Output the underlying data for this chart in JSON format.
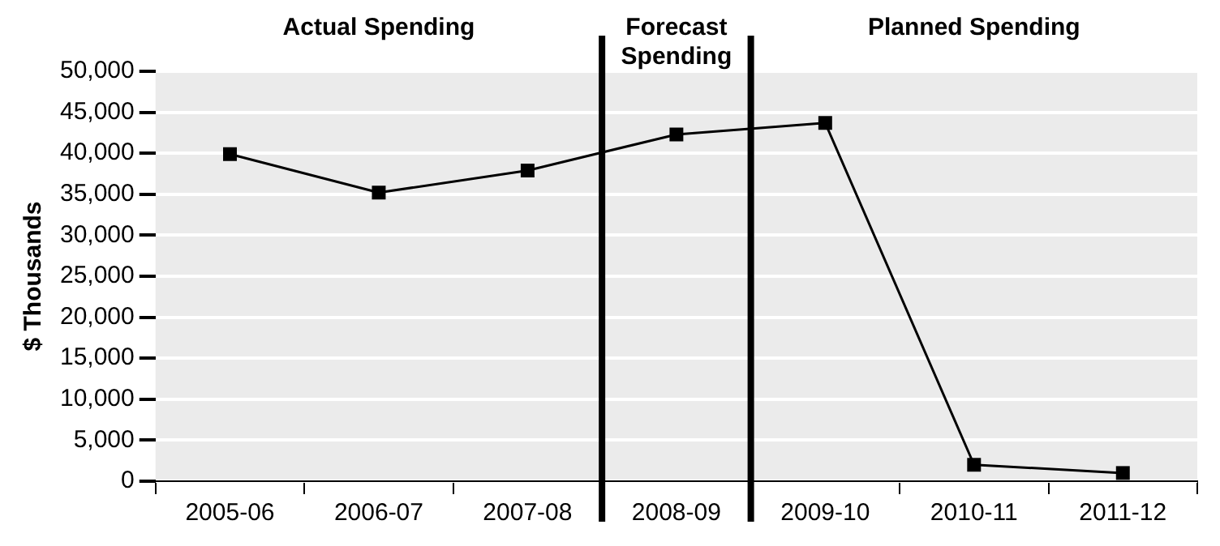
{
  "chart_data": {
    "type": "line",
    "ylabel": "$ Thousands",
    "categories": [
      "2005-06",
      "2006-07",
      "2007-08",
      "2008-09",
      "2009-10",
      "2010-11",
      "2011-12"
    ],
    "series": [
      {
        "color": "#000000",
        "values": [
          39900,
          35200,
          37900,
          42300,
          43700,
          2000,
          1000
        ]
      }
    ],
    "ylim": [
      0,
      50000
    ],
    "yticks": [
      0,
      {
        "value": 5000,
        "label": "5,000"
      },
      {
        "value": 10000,
        "label": "10,000"
      },
      {
        "value": 15000,
        "label": "15,000"
      },
      {
        "value": 20000,
        "label": "20,000"
      },
      {
        "value": 25000,
        "label": "25,000"
      },
      {
        "value": 30000,
        "label": "30,000"
      },
      {
        "value": 35000,
        "label": "35,000"
      },
      {
        "value": 40000,
        "label": "40,000"
      },
      {
        "value": 45000,
        "label": "45,000"
      },
      {
        "value": 50000,
        "label": "50,000"
      }
    ],
    "bands": [
      {
        "axis": "x",
        "from": "2005-06",
        "to": "2007-08",
        "label": "Actual Spending",
        "color": "#ebebeb"
      },
      {
        "axis": "x",
        "from": "2008-09",
        "to": "2008-09",
        "label": "Forecast Spending",
        "color": "#ebebeb"
      },
      {
        "axis": "x",
        "from": "2009-10",
        "to": "2011-12",
        "label": "Planned Spending",
        "color": "#ebebeb"
      }
    ],
    "grid": "y",
    "legend": false,
    "marker": "square",
    "line_style": "solid"
  }
}
